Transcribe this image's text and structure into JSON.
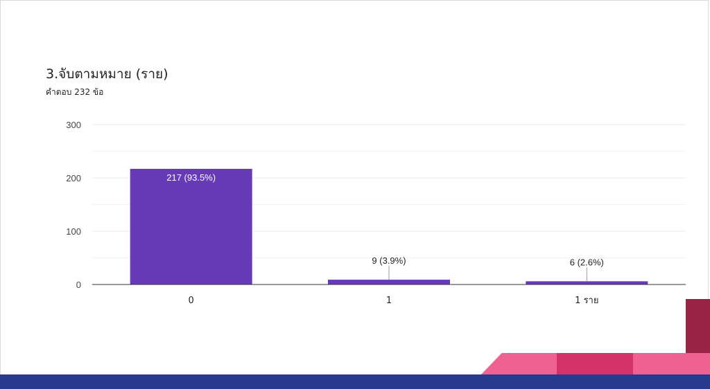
{
  "header": {
    "question_title": "3.จับตามหมาย  (ราย)",
    "response_count": "คำตอบ 232 ข้อ"
  },
  "colors": {
    "bar": "#673ab7",
    "grid": "#ebebeb",
    "axis": "#333333",
    "bottom_band": "#283a90",
    "accent_pink": "#ef6191",
    "accent_magenta": "#d4336a",
    "accent_maroon": "#9b2346"
  },
  "chart_data": {
    "type": "bar",
    "categories": [
      "0",
      "1",
      "1 ราย"
    ],
    "values": [
      217,
      9,
      6
    ],
    "data_labels": [
      "217 (93.5%)",
      "9 (3.9%)",
      "6 (2.6%)"
    ],
    "ylim": [
      0,
      300
    ],
    "yticks": [
      0,
      100,
      200,
      300
    ],
    "title": "",
    "xlabel": "",
    "ylabel": "",
    "grid": true
  }
}
